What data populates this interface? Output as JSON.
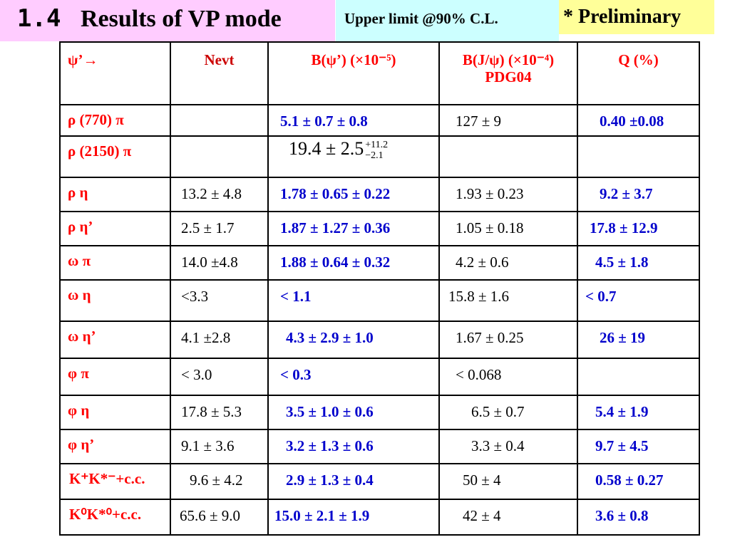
{
  "header": {
    "section_number": "1.4",
    "title": "Results of VP mode",
    "upper_limit_note": "Upper limit @90% C.L.",
    "preliminary": "*  Preliminary"
  },
  "table": {
    "columns": {
      "mode": "ψ’→",
      "nevt": "Nevt",
      "b_psi_prime": "B(ψ’)    (×10⁻⁵)",
      "b_jpsi": "B(J/ψ)  (×10⁻⁴)",
      "b_jpsi_sub": "PDG04",
      "q": "Q   (%)"
    },
    "rows": [
      {
        "mode": "ρ (770) π",
        "nevt": "",
        "b_psi": "5.1  ± 0.7   ± 0.8",
        "b_jpsi": "127    ± 9",
        "q": "0.40 ±0.08"
      },
      {
        "mode": "ρ (2150) π",
        "nevt": "",
        "b_psi_main": "19.4 ± 2.5",
        "b_psi_plus": "+11.2",
        "b_psi_minus": "−2.1",
        "b_jpsi": "",
        "q": ""
      },
      {
        "mode": "ρ η",
        "nevt": "13.2 ± 4.8",
        "b_psi": "1.78 ± 0.65 ± 0.22",
        "b_jpsi": "1.93 ± 0.23",
        "q": "9.2   ± 3.7"
      },
      {
        "mode": "ρ η’",
        "nevt": "2.5  ± 1.7",
        "b_psi": "1.87 ± 1.27 ± 0.36",
        "b_jpsi": "1.05 ± 0.18",
        "q": "17.8  ± 12.9"
      },
      {
        "mode": "ω π",
        "nevt": "14.0 ±4.8",
        "b_psi": "1.88 ± 0.64 ± 0.32",
        "b_jpsi": "4.2   ± 0.6",
        "q": "4.5   ± 1.8"
      },
      {
        "mode": "ω η",
        "nevt": "<3.3",
        "b_psi": "< 1.1",
        "b_jpsi": "15.8   ± 1.6",
        "q": "<   0.7"
      },
      {
        "mode": "ω η’",
        "nevt": "4.1 ±2.8",
        "b_psi": "4.3  ± 2.9   ± 1.0",
        "b_jpsi": "1.67 ± 0.25",
        "q": "26   ± 19"
      },
      {
        "mode": "φ π",
        "nevt": "< 3.0",
        "b_psi": "< 0.3",
        "b_jpsi": "<  0.068",
        "q": ""
      },
      {
        "mode": "φ η",
        "nevt": "17.8 ± 5.3",
        "b_psi": "3.5  ± 1.0   ± 0.6",
        "b_jpsi": "6.5 ± 0.7",
        "q": "5.4   ± 1.9"
      },
      {
        "mode": "φ η’",
        "nevt": "9.1 ± 3.6",
        "b_psi": "3.2  ± 1.3   ± 0.6",
        "b_jpsi": "3.3 ± 0.4",
        "q": "9.7   ± 4.5"
      },
      {
        "mode": "K⁺K*⁻+c.c.",
        "nevt": "9.6 ± 4.2",
        "b_psi": "2.9   ± 1.3   ± 0.4",
        "b_jpsi": "50    ± 4",
        "q": "0.58 ± 0.27"
      },
      {
        "mode": "K⁰K*⁰+c.c.",
        "nevt": "65.6 ± 9.0",
        "b_psi": "15.0   ± 2.1   ± 1.9",
        "b_jpsi": "42    ± 4",
        "q": "3.6   ± 0.8"
      }
    ]
  }
}
